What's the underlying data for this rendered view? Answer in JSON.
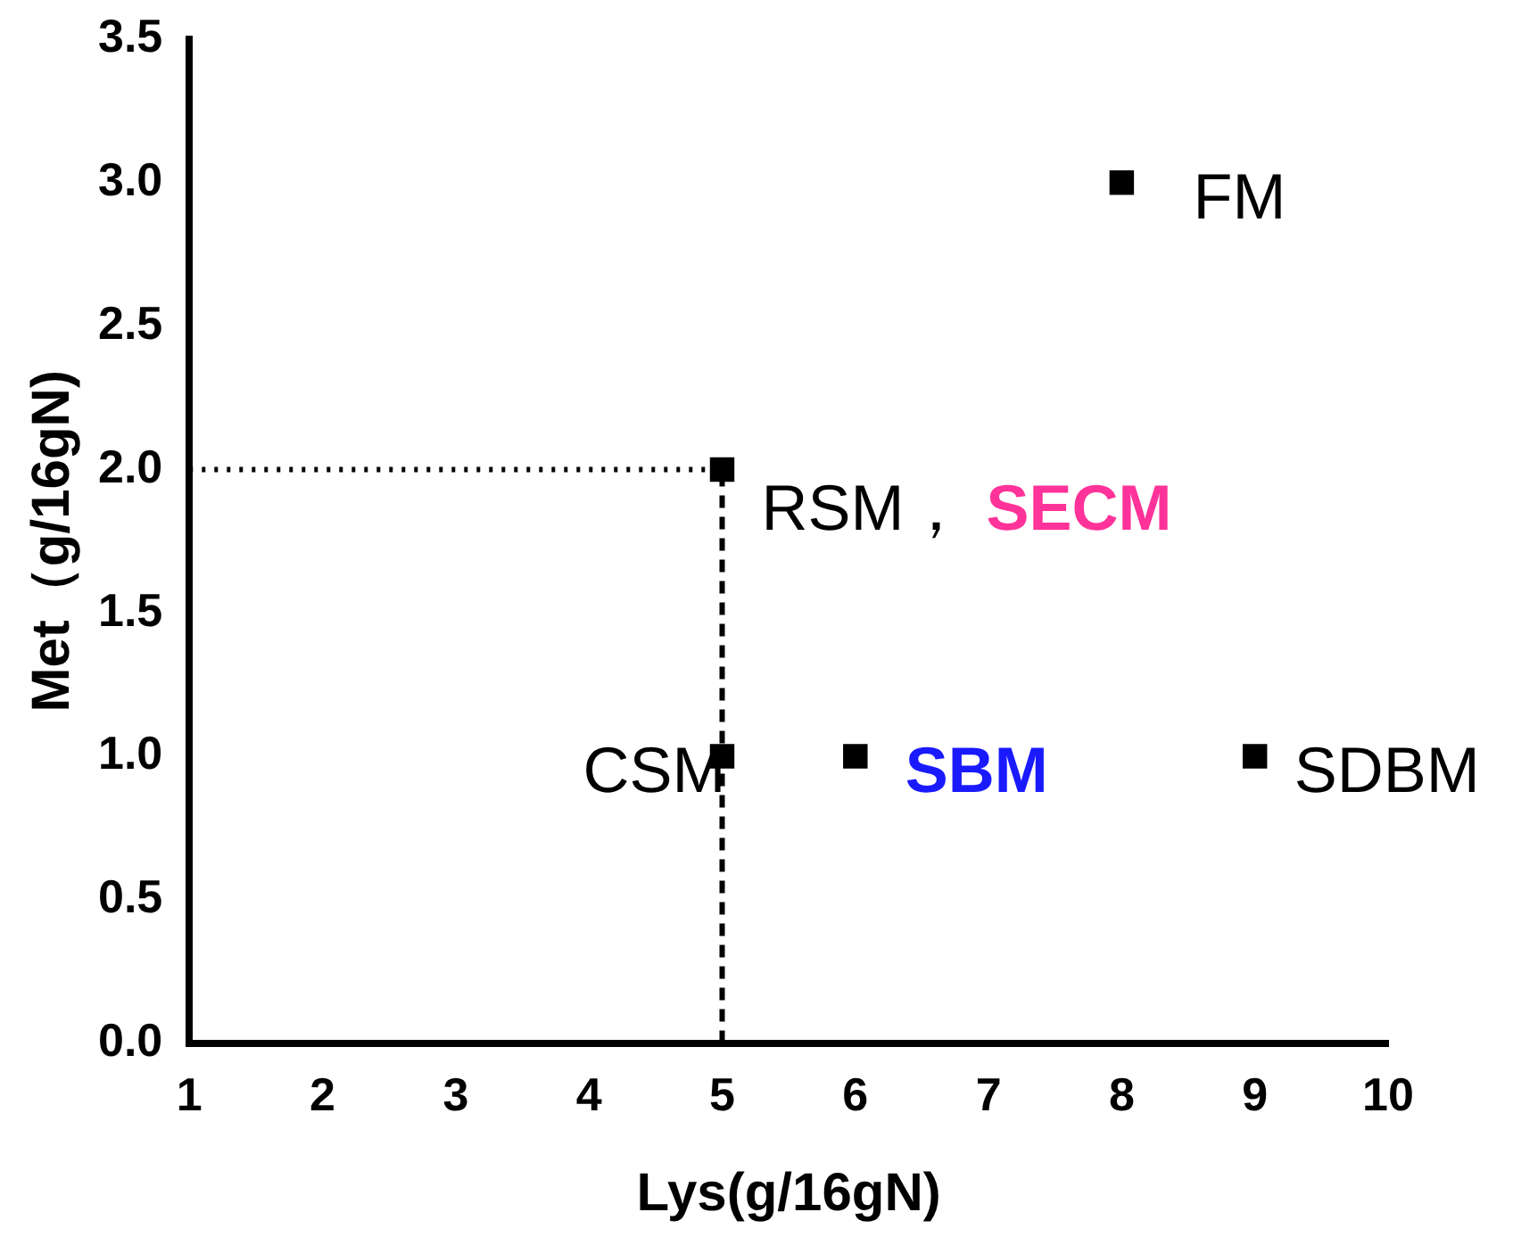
{
  "chart_data": {
    "type": "scatter",
    "xlabel": "Lys(g/16gN)",
    "ylabel": "Met（g/16gN)",
    "series": [
      {
        "color": "#000000",
        "x": [
          5,
          8,
          5,
          6,
          9
        ],
        "values": [
          2,
          3,
          1,
          1,
          1
        ]
      }
    ],
    "marker": "square",
    "xlim": [
      1,
      10
    ],
    "xticks": [
      1,
      2,
      3,
      4,
      5,
      6,
      7,
      8,
      9,
      10
    ],
    "ylim": [
      0,
      3.5
    ],
    "yticks": [
      {
        "value": 0,
        "label": "0.0"
      },
      {
        "value": 0.5,
        "label": "0.5"
      },
      {
        "value": 1,
        "label": "1.0"
      },
      {
        "value": 1.5,
        "label": "1.5"
      },
      {
        "value": 2,
        "label": "2.0"
      },
      {
        "value": 2.5,
        "label": "2.5"
      },
      {
        "value": 3,
        "label": "3.0"
      },
      {
        "value": 3.5,
        "label": "3.5"
      }
    ],
    "grid": false,
    "legend": false,
    "ref_lines": [
      {
        "axis": "y",
        "value": 2,
        "line_style": "dotted",
        "color": "#000000"
      },
      {
        "axis": "x",
        "value": 5,
        "line_style": "dashed",
        "color": "#000000"
      }
    ],
    "annotations": [
      {
        "text": "RSM，",
        "x": 5,
        "y": 2
      },
      "SECM",
      {
        "text": "FM",
        "x": 8,
        "y": 3
      },
      {
        "text": "CSM",
        "x": 5,
        "y": 1
      },
      {
        "text": "SBM",
        "x": 6,
        "y": 1
      },
      {
        "text": "SDBM",
        "x": 9,
        "y": 1
      }
    ]
  }
}
